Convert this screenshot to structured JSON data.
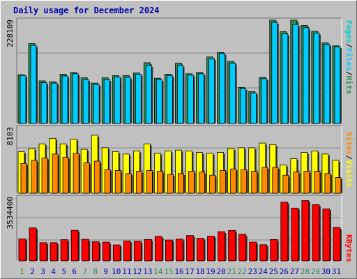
{
  "title": "Daily usage for December 2024",
  "colors": {
    "pages": "#00cccc",
    "files": "#00ccff",
    "hits": "#2e8b57",
    "sites": "#ff8800",
    "visits": "#ffff00",
    "kbytes": "#ff0000",
    "weekend_day": "#2e8b57",
    "weekday_day": "#0000aa"
  },
  "chart_data": [
    {
      "type": "bar",
      "categories": [
        "1",
        "2",
        "3",
        "4",
        "5",
        "6",
        "7",
        "8",
        "9",
        "10",
        "11",
        "12",
        "13",
        "14",
        "15",
        "16",
        "17",
        "18",
        "19",
        "20",
        "21",
        "22",
        "23",
        "24",
        "25",
        "26",
        "27",
        "28",
        "29",
        "30",
        "31"
      ],
      "weekend_days": [
        "1",
        "7",
        "8",
        "14",
        "15",
        "21",
        "22",
        "28",
        "29"
      ],
      "ymax_label": "228109",
      "ylim": [
        0,
        228109
      ],
      "series": [
        {
          "name": "Hits",
          "values": [
            110000,
            180000,
            96000,
            94000,
            111000,
            115000,
            103000,
            91000,
            103000,
            108000,
            108000,
            114000,
            137000,
            102000,
            111000,
            136000,
            112000,
            115000,
            150000,
            160000,
            140000,
            81000,
            72000,
            104000,
            233000,
            207000,
            233000,
            221000,
            208000,
            182000,
            175000
          ]
        },
        {
          "name": "Files",
          "values": [
            108000,
            176000,
            92000,
            91000,
            107000,
            112000,
            99000,
            88000,
            99000,
            105000,
            104000,
            111000,
            131000,
            99000,
            108000,
            131000,
            109000,
            112000,
            146000,
            158000,
            136000,
            79000,
            69000,
            101000,
            228000,
            202000,
            223000,
            216000,
            204000,
            178000,
            173000
          ]
        },
        {
          "name": "Pages",
          "values": [
            0,
            0,
            0,
            0,
            0,
            0,
            0,
            0,
            0,
            0,
            0,
            0,
            0,
            0,
            0,
            0,
            0,
            0,
            0,
            0,
            0,
            0,
            0,
            0,
            0,
            0,
            0,
            0,
            0,
            0,
            0
          ]
        }
      ],
      "right_label": [
        "Pages",
        "Files",
        "Hits"
      ]
    },
    {
      "type": "bar",
      "categories": [
        "1",
        "2",
        "3",
        "4",
        "5",
        "6",
        "7",
        "8",
        "9",
        "10",
        "11",
        "12",
        "13",
        "14",
        "15",
        "16",
        "17",
        "18",
        "19",
        "20",
        "21",
        "22",
        "23",
        "24",
        "25",
        "26",
        "27",
        "28",
        "29",
        "30",
        "31"
      ],
      "ymax_label": "8103",
      "ylim": [
        0,
        8103
      ],
      "series": [
        {
          "name": "Visits",
          "values": [
            5300,
            5700,
            6300,
            7000,
            6300,
            6900,
            5600,
            7400,
            5800,
            5300,
            5000,
            5400,
            6300,
            5100,
            5400,
            5500,
            5400,
            5200,
            5100,
            5200,
            5700,
            5800,
            5800,
            6400,
            6200,
            3600,
            4400,
            5200,
            5400,
            5000,
            4200
          ]
        },
        {
          "name": "Sites",
          "values": [
            3800,
            4200,
            4500,
            5000,
            4600,
            5100,
            3900,
            4100,
            3000,
            2900,
            2500,
            2800,
            2900,
            2800,
            2400,
            2500,
            2800,
            2700,
            2300,
            2900,
            3100,
            3000,
            2800,
            3300,
            3300,
            2300,
            2700,
            2800,
            2800,
            2500,
            2000
          ]
        }
      ],
      "right_label": [
        "Sites",
        "Visits"
      ]
    },
    {
      "type": "bar",
      "categories": [
        "1",
        "2",
        "3",
        "4",
        "5",
        "6",
        "7",
        "8",
        "9",
        "10",
        "11",
        "12",
        "13",
        "14",
        "15",
        "16",
        "17",
        "18",
        "19",
        "20",
        "21",
        "22",
        "23",
        "24",
        "25",
        "26",
        "27",
        "28",
        "29",
        "30",
        "31"
      ],
      "ymax_label": "3534400",
      "ylim": [
        0,
        3534400
      ],
      "series": [
        {
          "name": "KBytes",
          "values": [
            1260000,
            1900000,
            1050000,
            1050000,
            1220000,
            1760000,
            1240000,
            1100000,
            1080000,
            920000,
            1140000,
            1130000,
            1230000,
            1410000,
            1200000,
            1250000,
            1460000,
            1300000,
            1420000,
            1680000,
            1750000,
            1530000,
            1080000,
            930000,
            1230000,
            3380000,
            3040000,
            3470000,
            3240000,
            2990000,
            1920000
          ]
        }
      ],
      "right_label": [
        "KBytes"
      ]
    }
  ]
}
